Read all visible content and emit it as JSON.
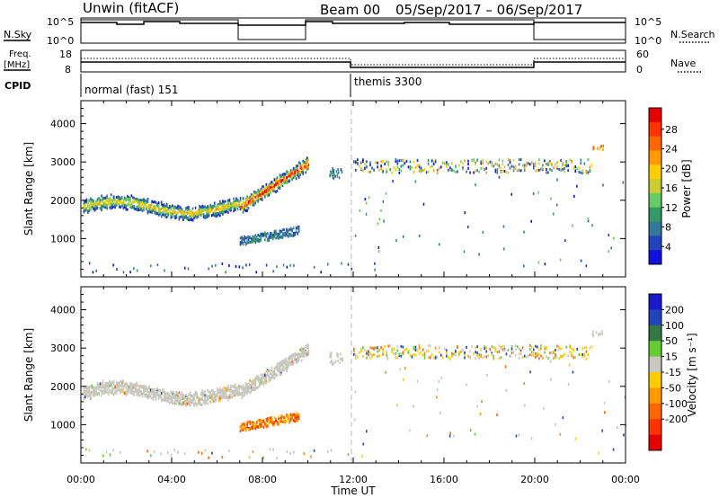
{
  "header": {
    "station": "Unwin (fitACF)",
    "beam": "Beam 00",
    "dates": "05/Sep/2017 – 06/Sep/2017"
  },
  "nsky_panel": {
    "left_label": "N.Sky",
    "right_label": "N.Search",
    "left_ticks": [
      "10^5",
      "10^0"
    ],
    "right_ticks": [
      "10^5",
      "10^0"
    ]
  },
  "freq_panel": {
    "left_label_line1": "Freq.",
    "left_label_line2": "[MHz]",
    "right_label": "Nave",
    "left_ticks": [
      "18",
      "8"
    ],
    "right_ticks": [
      "60",
      "0"
    ]
  },
  "cpid_panel": {
    "label": "CPID",
    "segments": [
      {
        "start_hr": 0,
        "end_hr": 12,
        "name": "normal (fast) 151"
      },
      {
        "start_hr": 12,
        "end_hr": 24,
        "name": "themis 3300"
      }
    ]
  },
  "chart_data": [
    {
      "type": "heatmap",
      "ylabel": "Slant Range [km]",
      "ylim": [
        0,
        4600
      ],
      "yticks": [
        "1000",
        "2000",
        "3000",
        "4000"
      ],
      "xlim_hr": [
        0,
        24
      ],
      "colorbar": {
        "label": "Power [dB]",
        "ticks": [
          "28",
          "24",
          "20",
          "16",
          "12",
          "8",
          "4"
        ],
        "colors": [
          "#e60000",
          "#ff3300",
          "#ff6600",
          "#ff9900",
          "#ffcc00",
          "#cccc33",
          "#66cc66",
          "#339966",
          "#337799",
          "#2244bb",
          "#1111dd"
        ]
      }
    },
    {
      "type": "heatmap",
      "ylabel": "Slant Range [km]",
      "ylim": [
        0,
        4600
      ],
      "yticks": [
        "1000",
        "2000",
        "3000",
        "4000"
      ],
      "xlim_hr": [
        0,
        24
      ],
      "colorbar": {
        "label": "Velocity [m s⁻¹]",
        "ticks": [
          "200",
          "100",
          "50",
          "15",
          "-15",
          "-50",
          "-100",
          "-200"
        ],
        "colors": [
          "#1a1acc",
          "#2244bb",
          "#337744",
          "#66cc33",
          "#c8c8c0",
          "#ffcc00",
          "#ff9900",
          "#ff6600",
          "#ff3300",
          "#e60000"
        ]
      }
    }
  ],
  "xaxis": {
    "label": "Time UT",
    "ticks": [
      "00:00",
      "04:00",
      "08:00",
      "12:00",
      "16:00",
      "20:00",
      "00:00"
    ]
  }
}
